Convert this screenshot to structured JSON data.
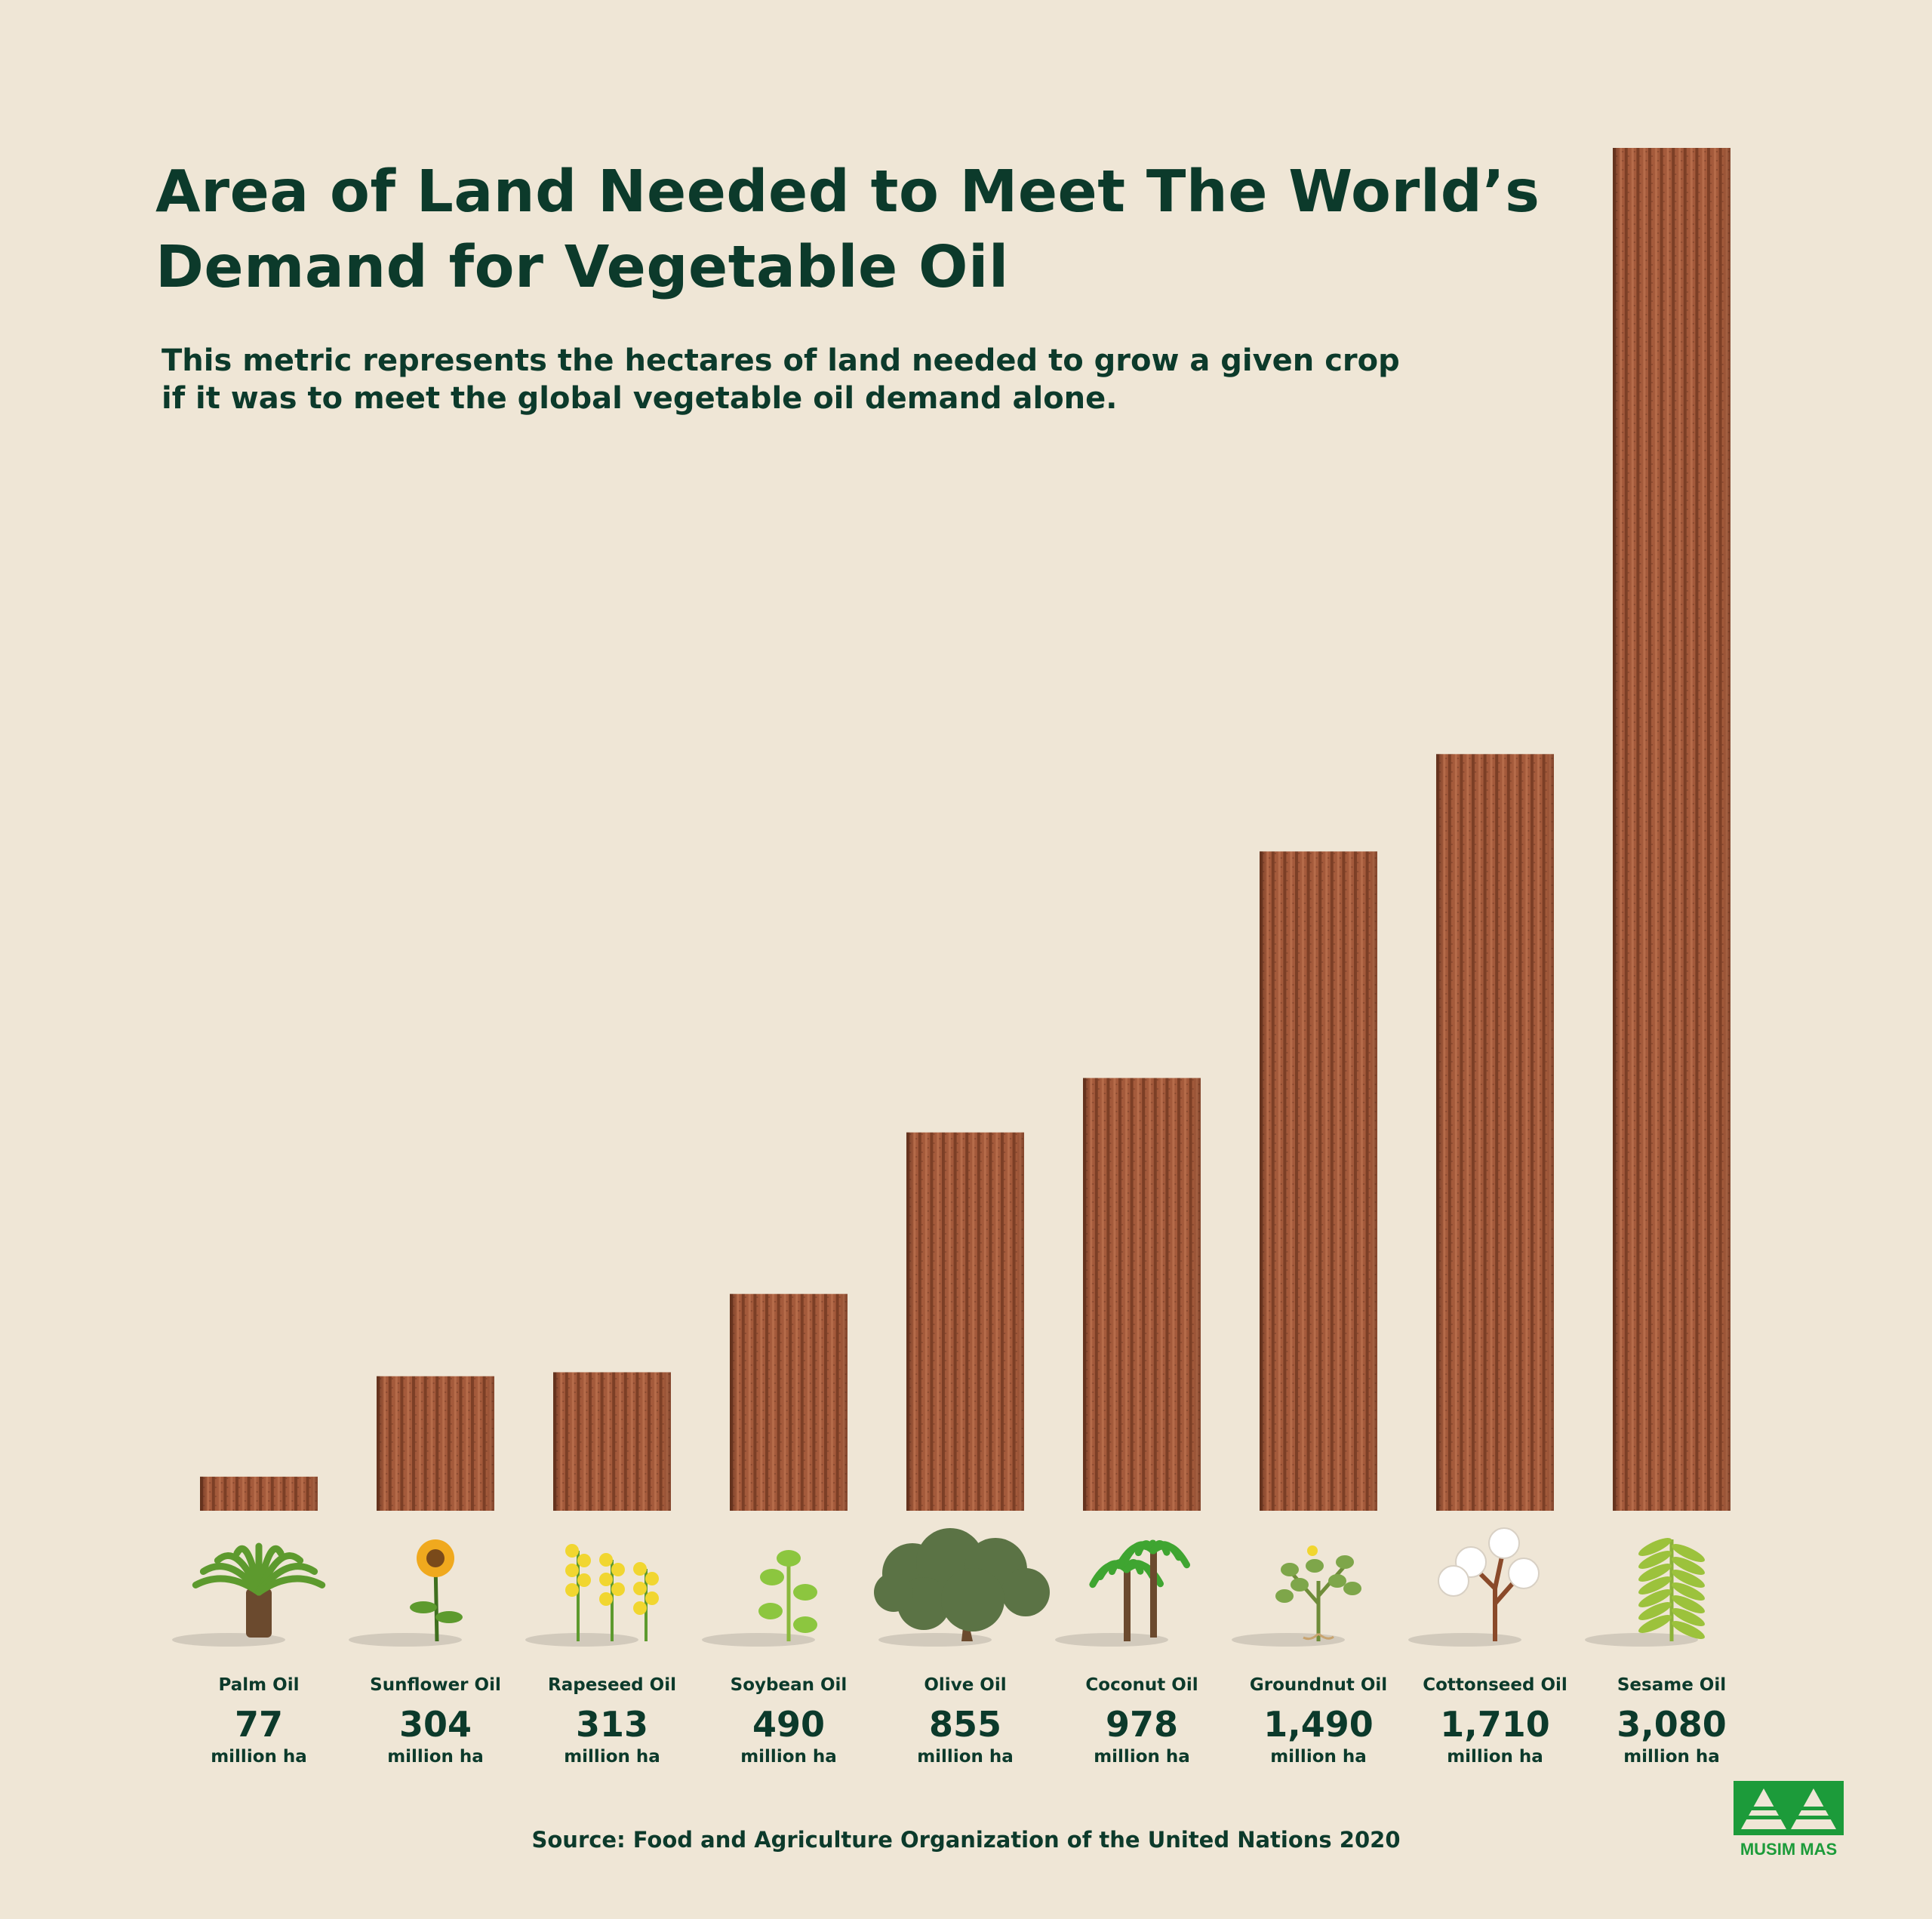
{
  "title_lines": [
    "Area of Land Needed to Meet The World’s",
    "Demand for Vegetable Oil"
  ],
  "subtitle_lines": [
    "This metric represents the hectares of land needed to grow a given crop",
    "if it was to meet the global vegetable oil demand alone."
  ],
  "source": "Source: Food and Agriculture Organization of the United Nations 2020",
  "logo_text": "MUSIM MAS",
  "colors": {
    "background": "#efe6d6",
    "text": "#0c3a2b",
    "bar": "#a55a3a",
    "logo": "#1c9b3a"
  },
  "chart_data": {
    "type": "bar",
    "title": "Area of Land Needed to Meet The World’s Demand for Vegetable Oil",
    "unit": "million ha",
    "categories": [
      "Palm Oil",
      "Sunflower Oil",
      "Rapeseed Oil",
      "Soybean Oil",
      "Olive Oil",
      "Coconut Oil",
      "Groundnut Oil",
      "Cottonseed Oil",
      "Sesame Oil"
    ],
    "values": [
      77,
      304,
      313,
      490,
      855,
      978,
      1490,
      1710,
      3080
    ],
    "value_labels": [
      "77",
      "304",
      "313",
      "490",
      "855",
      "978",
      "1,490",
      "1,710",
      "3,080"
    ],
    "icons": [
      "oil-palm-icon",
      "sunflower-icon",
      "rapeseed-icon",
      "soybean-icon",
      "olive-tree-icon",
      "coconut-palm-icon",
      "groundnut-icon",
      "cotton-icon",
      "sesame-icon"
    ],
    "ylim": [
      0,
      3080
    ],
    "grid": false,
    "legend": "none"
  }
}
